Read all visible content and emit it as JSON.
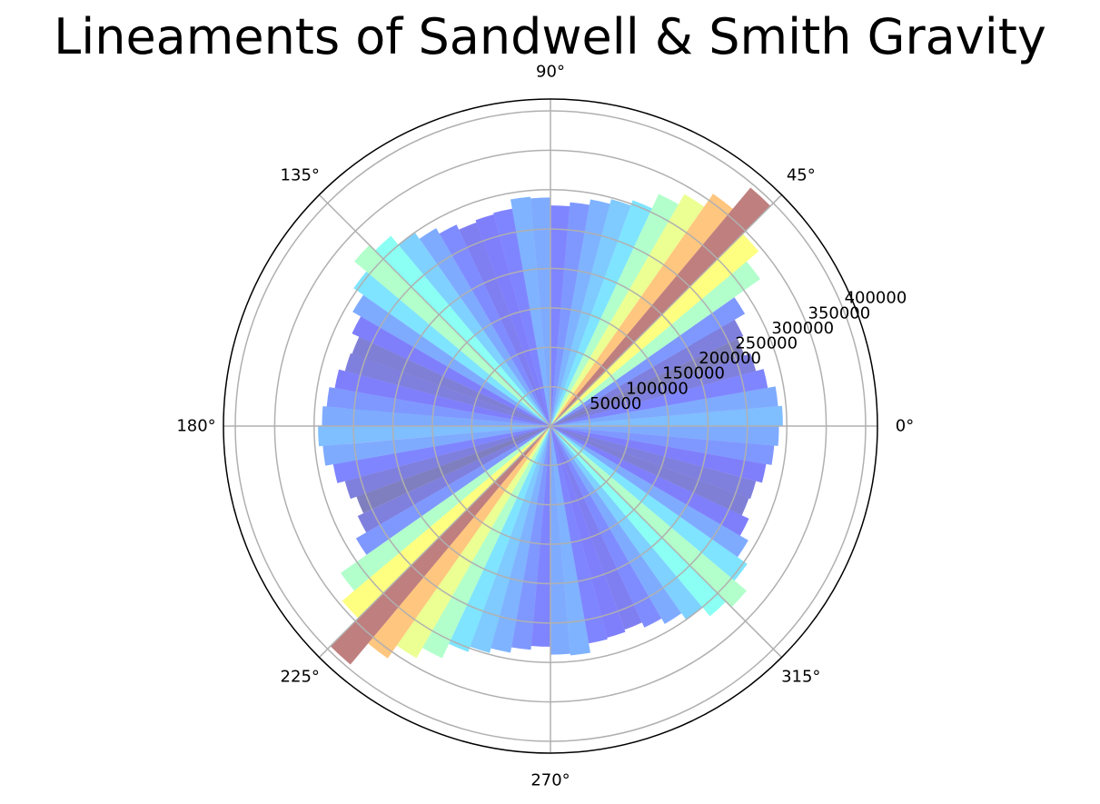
{
  "chart_data": {
    "type": "polar-bar",
    "title": "Lineaments of Sandwell & Smith Gravity",
    "bin_width_deg": 5,
    "symmetric": true,
    "theta_tick_labels": [
      "0°",
      "45°",
      "90°",
      "135°",
      "180°",
      "225°",
      "270°",
      "315°"
    ],
    "radial_tick_labels": [
      "50000",
      "100000",
      "150000",
      "200000",
      "250000",
      "300000",
      "350000",
      "400000"
    ],
    "radial_ticks": [
      50000,
      100000,
      150000,
      200000,
      250000,
      300000,
      350000,
      400000
    ],
    "rmax": 415000,
    "colormap": "jet",
    "alpha": 0.5,
    "grid": true,
    "bins_start_deg": [
      0,
      5,
      10,
      15,
      20,
      25,
      30,
      35,
      40,
      45,
      50,
      55,
      60,
      65,
      70,
      75,
      80,
      85,
      90,
      95,
      100,
      105,
      110,
      115,
      120,
      125,
      130,
      135,
      140,
      145,
      150,
      155,
      160,
      165,
      170,
      175
    ],
    "values": [
      295000,
      290000,
      280000,
      270000,
      262000,
      270000,
      285000,
      325000,
      345000,
      395000,
      360000,
      340000,
      325000,
      305000,
      298000,
      292000,
      285000,
      280000,
      290000,
      292000,
      280000,
      278000,
      275000,
      282000,
      290000,
      300000,
      315000,
      325000,
      305000,
      290000,
      278000,
      268000,
      270000,
      278000,
      285000,
      290000
    ]
  }
}
